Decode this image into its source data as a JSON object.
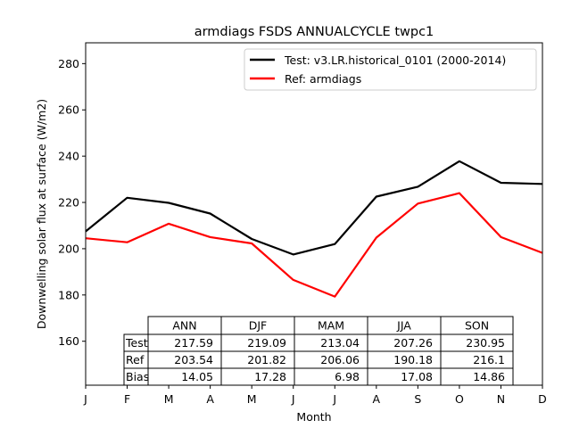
{
  "chart_data": {
    "type": "line",
    "title": "armdiags FSDS ANNUALCYCLE twpc1",
    "xlabel": "Month",
    "ylabel": "Downwelling solar flux at surface (W/m2)",
    "x_tick_labels": [
      "J",
      "F",
      "M",
      "A",
      "M",
      "J",
      "J",
      "A",
      "S",
      "O",
      "N",
      "D"
    ],
    "ylim": [
      141,
      289
    ],
    "y_ticks": [
      160,
      180,
      200,
      220,
      240,
      260,
      280
    ],
    "legend_position": "top-right",
    "series": [
      {
        "name": "Test: v3.LR.historical_0101 (2000-2014)",
        "color": "#000000",
        "values": [
          207.5,
          222.0,
          219.8,
          215.2,
          204.2,
          197.5,
          202.0,
          222.5,
          226.8,
          237.8,
          228.5,
          228.0
        ]
      },
      {
        "name": "Ref: armdiags",
        "color": "#ff0000",
        "values": [
          204.5,
          202.8,
          210.8,
          205.0,
          202.3,
          186.5,
          179.3,
          204.8,
          219.5,
          224.0,
          205.0,
          198.2
        ]
      }
    ],
    "table": {
      "columns": [
        "ANN",
        "DJF",
        "MAM",
        "JJA",
        "SON"
      ],
      "rows": [
        {
          "label": "Test",
          "values": [
            "217.59",
            "219.09",
            "213.04",
            "207.26",
            "230.95"
          ]
        },
        {
          "label": "Ref",
          "values": [
            "203.54",
            "201.82",
            "206.06",
            "190.18",
            "216.1"
          ]
        },
        {
          "label": "Bias",
          "values": [
            "14.05",
            "17.28",
            "6.98",
            "17.08",
            "14.86"
          ]
        }
      ]
    }
  }
}
